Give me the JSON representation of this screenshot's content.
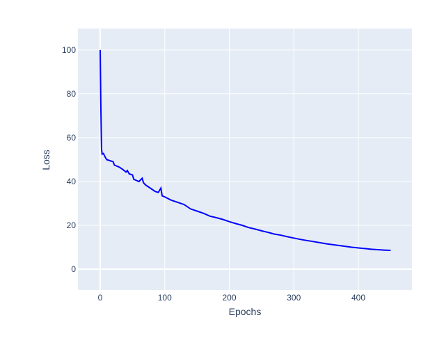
{
  "chart_data": {
    "type": "line",
    "title": "",
    "xlabel": "Epochs",
    "ylabel": "Loss",
    "xlim": [
      -34.5,
      483
    ],
    "ylim": [
      -9.5,
      109.8
    ],
    "xticks": [
      0,
      100,
      200,
      300,
      400
    ],
    "yticks": [
      0,
      20,
      40,
      60,
      80,
      100
    ],
    "grid": true,
    "colors": {
      "line": "#0000ff",
      "plot_bg": "#E5ECF6",
      "grid": "#ffffff",
      "text": "#2a3f5f"
    },
    "series": [
      {
        "x": [
          0,
          1,
          2,
          3,
          5,
          8,
          10,
          15,
          20,
          22,
          30,
          35,
          40,
          42,
          45,
          50,
          52,
          60,
          65,
          67,
          70,
          80,
          85,
          90,
          94,
          96,
          100,
          110,
          120,
          130,
          140,
          150,
          160,
          170,
          180,
          190,
          200,
          210,
          220,
          230,
          240,
          250,
          260,
          270,
          280,
          290,
          300,
          310,
          320,
          330,
          340,
          350,
          360,
          370,
          380,
          390,
          400,
          410,
          420,
          430,
          440,
          450
        ],
        "y": [
          100,
          75,
          55,
          52.5,
          52.8,
          51,
          50,
          49.5,
          49,
          47.5,
          46.5,
          45.5,
          44.3,
          45,
          43.5,
          43,
          41,
          40,
          41.5,
          39.5,
          38.5,
          36.5,
          35.5,
          35,
          37,
          33.5,
          33,
          31.5,
          30.5,
          29.5,
          27.5,
          26.5,
          25.5,
          24.2,
          23.5,
          22.7,
          21.7,
          20.8,
          20,
          19,
          18.3,
          17.5,
          16.8,
          16,
          15.5,
          14.8,
          14.2,
          13.6,
          13.1,
          12.6,
          12.1,
          11.6,
          11.2,
          10.8,
          10.4,
          10,
          9.7,
          9.4,
          9.1,
          8.9,
          8.7,
          8.6
        ]
      }
    ]
  }
}
